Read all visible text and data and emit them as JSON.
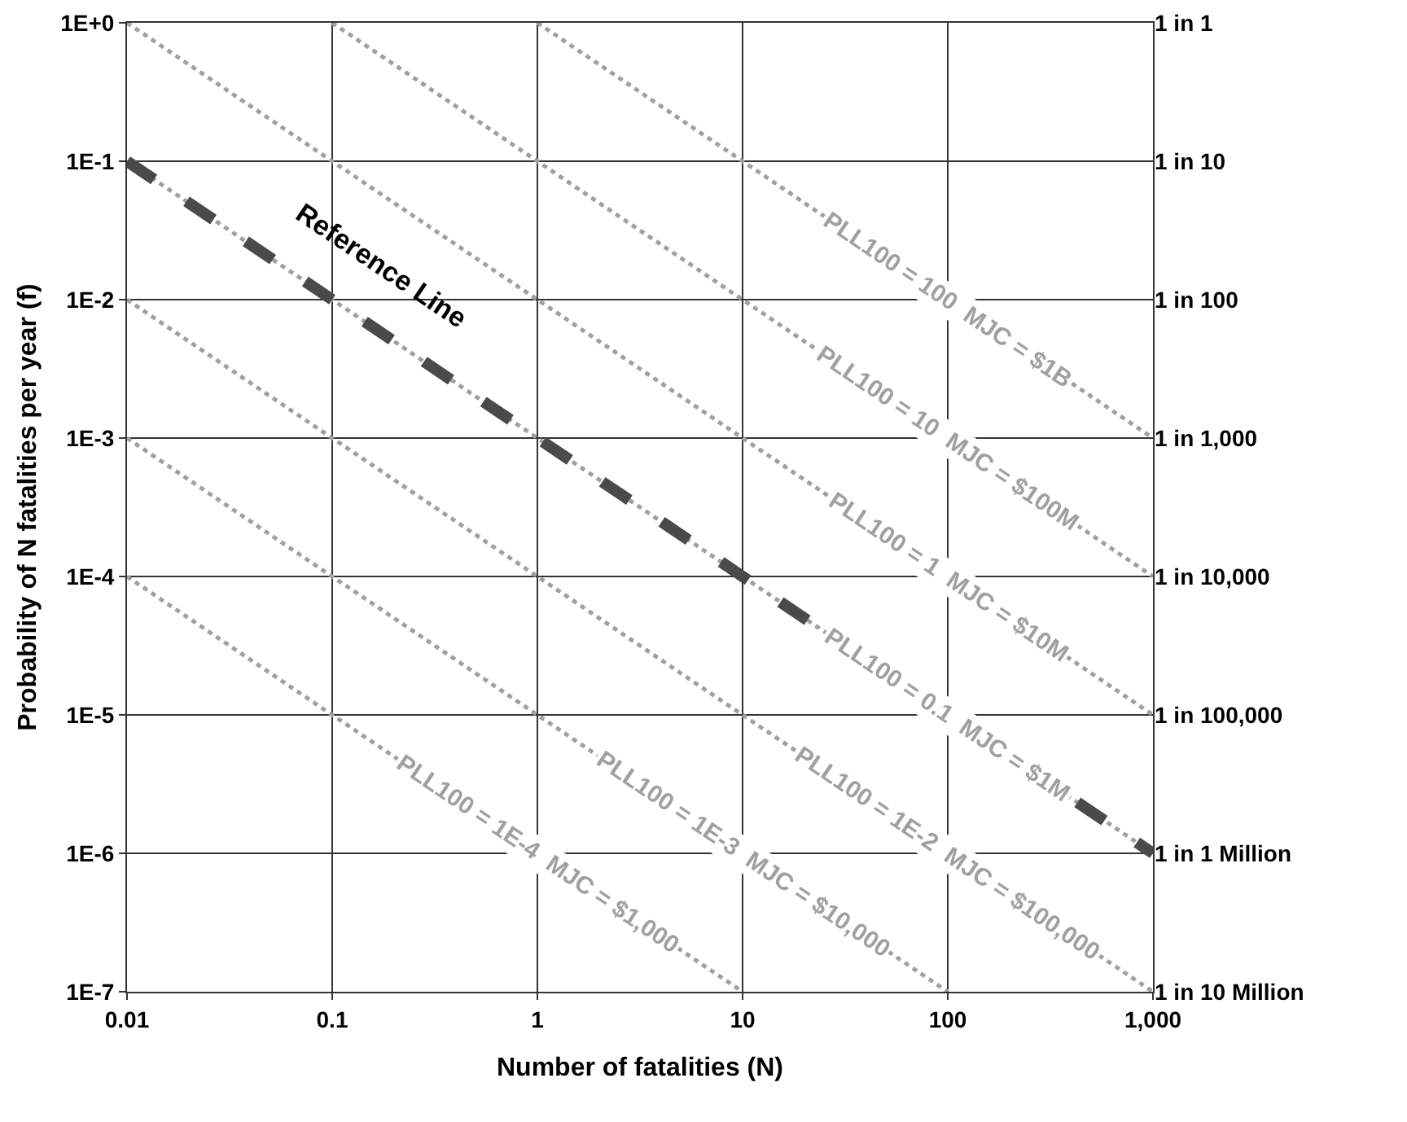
{
  "chart_data": {
    "type": "line",
    "xlabel": "Number of fatalities (N)",
    "ylabel": "Probability of N fatalities per year (f)",
    "log": "xy",
    "grid": true,
    "marker": "none",
    "xlim": [
      0.01,
      1000
    ],
    "xticks": [
      0.01,
      0.1,
      1,
      10,
      100,
      {
        "value": 1000,
        "label": "1,000"
      }
    ],
    "ylim": [
      1e-07,
      1
    ],
    "yticks": [
      {
        "value": 1e-07,
        "label": "1E-7"
      },
      {
        "value": 1e-06,
        "label": "1E-6"
      },
      {
        "value": 1e-05,
        "label": "1E-5"
      },
      {
        "value": 0.0001,
        "label": "1E-4"
      },
      {
        "value": 0.001,
        "label": "1E-3"
      },
      {
        "value": 0.01,
        "label": "1E-2"
      },
      {
        "value": 0.1,
        "label": "1E-1"
      },
      {
        "value": 1,
        "label": "1E+0"
      }
    ],
    "y2_categories": [
      "1 in 1",
      "1 in 10",
      "1 in 100",
      "1 in 1,000",
      "1 in 10,000",
      "1 in 100,000",
      "1 in 1 Million",
      "1 in 10 Million"
    ],
    "series": [
      {
        "color": "#a0a0a0",
        "line_style": "dotted",
        "x": [
          1,
          1000
        ],
        "values": [
          1,
          0.001
        ]
      },
      {
        "color": "#a0a0a0",
        "line_style": "dotted",
        "x": [
          0.1,
          1000
        ],
        "values": [
          1,
          0.0001
        ]
      },
      {
        "color": "#a0a0a0",
        "line_style": "dotted",
        "x": [
          0.01,
          1000
        ],
        "values": [
          1,
          1e-05
        ]
      },
      {
        "color": "#a0a0a0",
        "line_style": "dotted",
        "x": [
          0.01,
          1000
        ],
        "values": [
          0.1,
          1e-06
        ]
      },
      {
        "color": "#a0a0a0",
        "line_style": "dotted",
        "x": [
          0.01,
          1000
        ],
        "values": [
          0.01,
          1e-07
        ]
      },
      {
        "color": "#a0a0a0",
        "line_style": "dotted",
        "x": [
          0.01,
          100
        ],
        "values": [
          0.001,
          1e-07
        ]
      },
      {
        "color": "#a0a0a0",
        "line_style": "dotted",
        "x": [
          0.01,
          10
        ],
        "values": [
          0.0001,
          1e-07
        ]
      },
      {
        "color": "#4a4a4a",
        "line_style": "dashed",
        "x": [
          0.01,
          1000
        ],
        "values": [
          0.1,
          1e-06
        ]
      }
    ],
    "annotations": [
      {
        "text": "PLL100 = 100  MJC = $1B",
        "x": 100,
        "y": 0.01
      },
      {
        "text": "PLL100 = 10  MJC = $100M",
        "x": 100,
        "y": 0.001
      },
      {
        "text": "PLL100 = 1  MJC = $10M",
        "x": 100,
        "y": 0.0001
      },
      {
        "text": "PLL100 = 0.1  MJC = $1M",
        "x": 100,
        "y": 1e-05
      },
      {
        "text": "PLL100 = 1E-2  MJC = $100,000",
        "x": 100,
        "y": 1e-06
      },
      {
        "text": "PLL100 = 1E-3  MJC = $10,000",
        "x": 10,
        "y": 1e-06
      },
      {
        "text": "PLL100 = 1E-4  MJC = $1,000",
        "x": 1,
        "y": 1e-06
      },
      {
        "text": "Reference Line",
        "x": 0.13,
        "y": 0.0077
      }
    ]
  }
}
